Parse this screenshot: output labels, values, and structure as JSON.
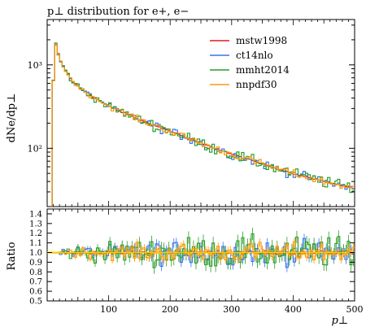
{
  "chart_data": [
    {
      "type": "line",
      "style": "step-histogram",
      "title": "p⊥ distribution for e+, e−",
      "ylabel": "dNe/dp⊥",
      "xlim": [
        0,
        500
      ],
      "ylim": [
        20,
        3500
      ],
      "yscale": "log",
      "grid": false,
      "legend_position": "top-right",
      "x_ticks": [
        100,
        200,
        300,
        400,
        500
      ],
      "y_ticks": [
        {
          "value": 100,
          "label": "10²"
        },
        {
          "value": 1000,
          "label": "10³"
        }
      ],
      "bin_width": 4,
      "x_start": 8,
      "anchors_x": [
        8,
        12,
        16,
        24,
        40,
        60,
        100,
        150,
        200,
        250,
        300,
        350,
        400,
        450,
        500
      ],
      "anchors_y": [
        200,
        2100,
        1500,
        1000,
        650,
        480,
        320,
        220,
        160,
        115,
        85,
        65,
        50,
        40,
        33
      ],
      "series": [
        {
          "name": "mstw1998",
          "color": "#e41a1c",
          "noise": 0.03
        },
        {
          "name": "ct14nlo",
          "color": "#3773ee",
          "noise": 0.06
        },
        {
          "name": "mmht2014",
          "color": "#2a9e2a",
          "noise": 0.08
        },
        {
          "name": "nnpdf30",
          "color": "#ff9900",
          "noise": 0.05
        }
      ]
    },
    {
      "type": "line",
      "style": "step-histogram",
      "ylabel": "Ratio",
      "xlabel": "p⊥",
      "xlim": [
        0,
        500
      ],
      "ylim": [
        0.5,
        1.45
      ],
      "x_ticks": [
        100,
        200,
        300,
        400,
        500
      ],
      "y_ticks": [
        0.5,
        0.6,
        0.7,
        0.8,
        0.9,
        1.0,
        1.1,
        1.2,
        1.3,
        1.4
      ],
      "reference_band": [
        0.99,
        1.01
      ],
      "band_color": "#ffee00",
      "series_ref": [
        "mstw1998",
        "ct14nlo",
        "mmht2014",
        "nnpdf30"
      ]
    }
  ]
}
